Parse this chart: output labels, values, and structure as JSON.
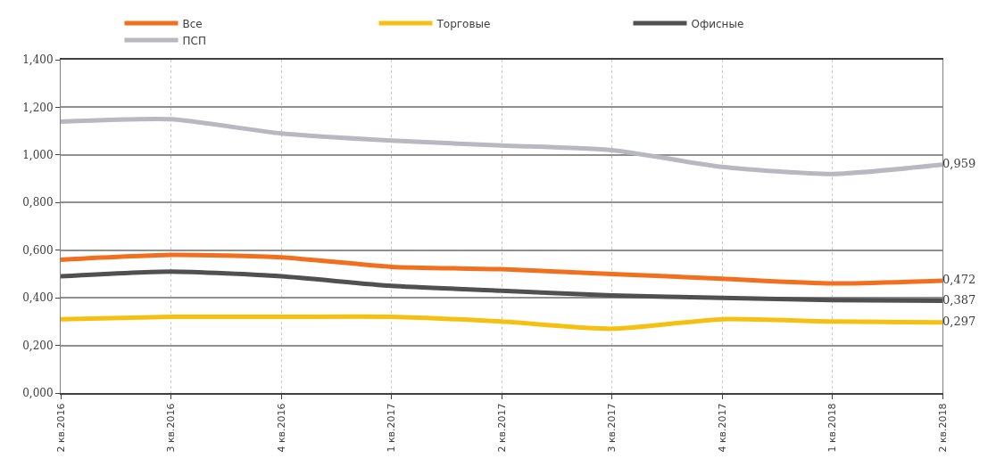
{
  "chart_data": {
    "type": "line",
    "categories": [
      "2 кв.2016",
      "3 кв.2016",
      "4 кв.2016",
      "1 кв.2017",
      "2 кв.2017",
      "3 кв.2017",
      "4 кв.2017",
      "1 кв.2018",
      "2 кв.2018"
    ],
    "series": [
      {
        "name": "Все",
        "color": "#f07020",
        "values": [
          0.56,
          0.58,
          0.57,
          0.53,
          0.52,
          0.5,
          0.48,
          0.46,
          0.472
        ],
        "value_labels": [
          null,
          null,
          null,
          null,
          null,
          null,
          null,
          null,
          "0,472"
        ]
      },
      {
        "name": "Торговые",
        "color": "#f5c010",
        "values": [
          0.31,
          0.32,
          0.32,
          0.32,
          0.3,
          0.27,
          0.31,
          0.3,
          0.297
        ],
        "value_labels": [
          null,
          null,
          null,
          null,
          null,
          null,
          null,
          null,
          "0,297"
        ]
      },
      {
        "name": "Офисные",
        "color": "#505050",
        "values": [
          0.49,
          0.51,
          0.49,
          0.45,
          0.43,
          0.41,
          0.4,
          0.39,
          0.387
        ],
        "value_labels": [
          null,
          null,
          null,
          null,
          null,
          null,
          null,
          null,
          "0,387"
        ]
      },
      {
        "name": "ПСП",
        "color": "#b8b8c0",
        "values": [
          1.14,
          1.15,
          1.09,
          1.06,
          1.04,
          1.02,
          0.95,
          0.92,
          0.959
        ],
        "value_labels": [
          null,
          null,
          null,
          null,
          null,
          null,
          null,
          null,
          "0,959"
        ]
      }
    ],
    "ylim": [
      0,
      1.4
    ],
    "yticks": [
      {
        "value": 0,
        "label": "0,000"
      },
      {
        "value": 0.2,
        "label": "0,200"
      },
      {
        "value": 0.4,
        "label": "0,400"
      },
      {
        "value": 0.6,
        "label": "0,600"
      },
      {
        "value": 0.8,
        "label": "0,800"
      },
      {
        "value": 1,
        "label": "1,000"
      },
      {
        "value": 1.2,
        "label": "1,200"
      },
      {
        "value": 1.4,
        "label": "1,400"
      }
    ],
    "grid": true,
    "legend": "top",
    "line_style": "solid",
    "marker": "none"
  }
}
